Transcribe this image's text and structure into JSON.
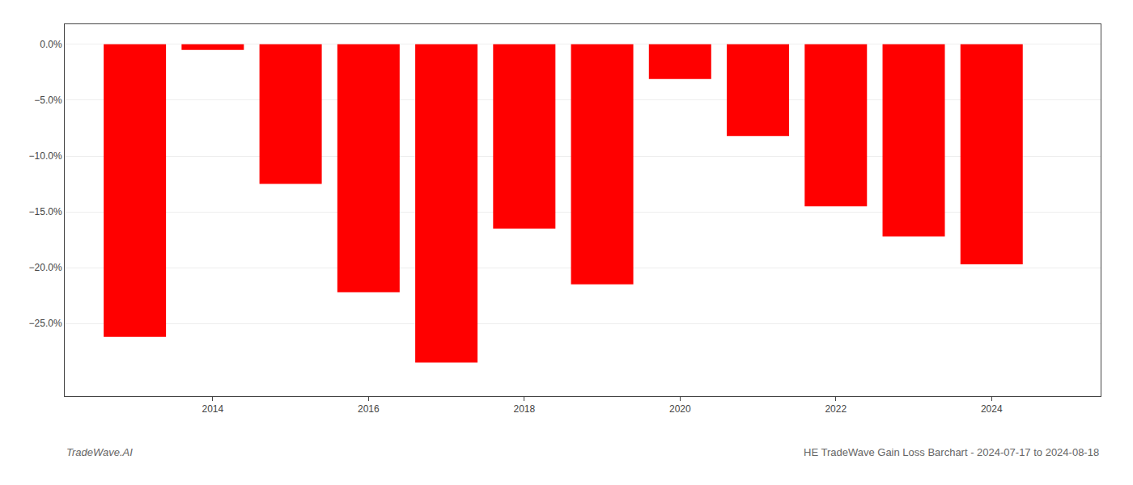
{
  "chart_data": {
    "type": "bar",
    "x": [
      2013,
      2014,
      2015,
      2016,
      2017,
      2018,
      2019,
      2020,
      2021,
      2022,
      2023,
      2024
    ],
    "values": [
      -0.262,
      -0.005,
      -0.125,
      -0.222,
      -0.285,
      -0.165,
      -0.215,
      -0.031,
      -0.082,
      -0.145,
      -0.172,
      -0.197
    ],
    "color": "#ff0000",
    "xlim": [
      2012.1,
      2025.4
    ],
    "xticks": [
      2014,
      2016,
      2018,
      2020,
      2022,
      2024
    ],
    "ylim": [
      -0.315,
      0.018
    ],
    "yticks": [
      {
        "value": 0.0,
        "label": "0.0%"
      },
      {
        "value": -0.05,
        "label": "−5.0%"
      },
      {
        "value": -0.1,
        "label": "−10.0%"
      },
      {
        "value": -0.15,
        "label": "−15.0%"
      },
      {
        "value": -0.2,
        "label": "−20.0%"
      },
      {
        "value": -0.25,
        "label": "−25.0%"
      }
    ],
    "grid": true,
    "annotations": [
      "TradeWave.AI",
      "HE TradeWave Gain Loss Barchart - 2024-07-17 to 2024-08-18"
    ]
  }
}
